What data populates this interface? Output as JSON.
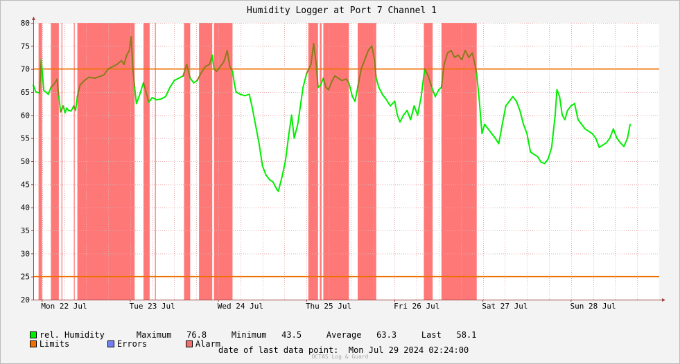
{
  "chart_data": {
    "type": "line",
    "title": "Humidity Logger at Port 7 Channel 1",
    "ylim": [
      20,
      80
    ],
    "yticks": [
      20,
      25,
      30,
      35,
      40,
      45,
      50,
      55,
      60,
      65,
      70,
      75,
      80
    ],
    "xlim": [
      0,
      7.1
    ],
    "xticks": [
      {
        "x": 0.35,
        "label": "Mon 22 Jul"
      },
      {
        "x": 1.35,
        "label": "Tue 23 Jul"
      },
      {
        "x": 2.35,
        "label": "Wed 24 Jul"
      },
      {
        "x": 3.35,
        "label": "Thu 25 Jul"
      },
      {
        "x": 4.35,
        "label": "Fri 26 Jul"
      },
      {
        "x": 5.35,
        "label": "Sat 27 Jul"
      },
      {
        "x": 6.35,
        "label": "Sun 28 Jul"
      }
    ],
    "limits": [
      70,
      25
    ],
    "alarm_periods": [
      [
        0.06,
        0.1
      ],
      [
        0.2,
        0.29
      ],
      [
        0.32,
        0.33
      ],
      [
        0.46,
        0.47
      ],
      [
        0.5,
        1.15
      ],
      [
        1.25,
        1.32
      ],
      [
        1.38,
        1.39
      ],
      [
        1.71,
        1.78
      ],
      [
        1.88,
        2.03
      ],
      [
        2.05,
        2.26
      ],
      [
        3.12,
        3.23
      ],
      [
        3.25,
        3.27
      ],
      [
        3.29,
        3.58
      ],
      [
        3.68,
        3.89
      ],
      [
        4.43,
        4.53
      ],
      [
        4.63,
        5.03
      ]
    ],
    "series": [
      {
        "name": "rel. Humidity",
        "color": "#00ee00",
        "alarm_color": "#8b7b1b",
        "points": [
          [
            0.0,
            66.5
          ],
          [
            0.03,
            65.0
          ],
          [
            0.07,
            64.8
          ],
          [
            0.09,
            72.0
          ],
          [
            0.12,
            65.3
          ],
          [
            0.15,
            64.9
          ],
          [
            0.17,
            64.5
          ],
          [
            0.2,
            66.0
          ],
          [
            0.24,
            66.8
          ],
          [
            0.27,
            67.8
          ],
          [
            0.29,
            64.0
          ],
          [
            0.31,
            60.7
          ],
          [
            0.34,
            62.0
          ],
          [
            0.36,
            60.5
          ],
          [
            0.38,
            61.5
          ],
          [
            0.4,
            61.0
          ],
          [
            0.43,
            60.9
          ],
          [
            0.46,
            62.0
          ],
          [
            0.48,
            61.0
          ],
          [
            0.5,
            64.0
          ],
          [
            0.53,
            66.5
          ],
          [
            0.58,
            67.5
          ],
          [
            0.63,
            68.2
          ],
          [
            0.7,
            68.0
          ],
          [
            0.8,
            68.7
          ],
          [
            0.85,
            70.0
          ],
          [
            0.9,
            70.5
          ],
          [
            0.95,
            71.0
          ],
          [
            1.0,
            71.8
          ],
          [
            1.03,
            71.0
          ],
          [
            1.06,
            73.0
          ],
          [
            1.09,
            74.0
          ],
          [
            1.11,
            77.0
          ],
          [
            1.13,
            70.0
          ],
          [
            1.15,
            66.0
          ],
          [
            1.17,
            62.5
          ],
          [
            1.2,
            64.0
          ],
          [
            1.25,
            67.0
          ],
          [
            1.28,
            65.0
          ],
          [
            1.31,
            62.8
          ],
          [
            1.35,
            63.8
          ],
          [
            1.4,
            63.3
          ],
          [
            1.45,
            63.5
          ],
          [
            1.5,
            64.0
          ],
          [
            1.55,
            66.0
          ],
          [
            1.6,
            67.5
          ],
          [
            1.65,
            68.0
          ],
          [
            1.7,
            68.5
          ],
          [
            1.74,
            71.0
          ],
          [
            1.78,
            68.0
          ],
          [
            1.82,
            67.0
          ],
          [
            1.86,
            67.5
          ],
          [
            1.9,
            69.0
          ],
          [
            1.95,
            70.5
          ],
          [
            2.0,
            71.0
          ],
          [
            2.03,
            73.0
          ],
          [
            2.05,
            70.0
          ],
          [
            2.08,
            69.5
          ],
          [
            2.12,
            70.5
          ],
          [
            2.16,
            71.5
          ],
          [
            2.2,
            74.0
          ],
          [
            2.23,
            70.5
          ],
          [
            2.26,
            69.5
          ],
          [
            2.28,
            67.0
          ],
          [
            2.3,
            65.0
          ],
          [
            2.35,
            64.5
          ],
          [
            2.4,
            64.2
          ],
          [
            2.45,
            64.5
          ],
          [
            2.48,
            62.0
          ],
          [
            2.52,
            58.0
          ],
          [
            2.56,
            54.0
          ],
          [
            2.6,
            49.0
          ],
          [
            2.64,
            47.0
          ],
          [
            2.68,
            46.0
          ],
          [
            2.72,
            45.5
          ],
          [
            2.76,
            44.0
          ],
          [
            2.78,
            43.5
          ],
          [
            2.82,
            46.5
          ],
          [
            2.86,
            50.0
          ],
          [
            2.9,
            56.0
          ],
          [
            2.93,
            60.0
          ],
          [
            2.96,
            55.0
          ],
          [
            3.0,
            58.0
          ],
          [
            3.03,
            62.0
          ],
          [
            3.06,
            66.0
          ],
          [
            3.1,
            69.0
          ],
          [
            3.15,
            71.0
          ],
          [
            3.18,
            75.5
          ],
          [
            3.21,
            71.0
          ],
          [
            3.23,
            66.0
          ],
          [
            3.26,
            66.5
          ],
          [
            3.29,
            68.0
          ],
          [
            3.32,
            66.0
          ],
          [
            3.35,
            65.5
          ],
          [
            3.38,
            67.0
          ],
          [
            3.42,
            68.5
          ],
          [
            3.46,
            68.0
          ],
          [
            3.5,
            67.5
          ],
          [
            3.55,
            67.8
          ],
          [
            3.58,
            67.0
          ],
          [
            3.62,
            64.0
          ],
          [
            3.65,
            63.0
          ],
          [
            3.68,
            66.0
          ],
          [
            3.72,
            70.0
          ],
          [
            3.76,
            72.0
          ],
          [
            3.8,
            74.0
          ],
          [
            3.84,
            75.0
          ],
          [
            3.87,
            72.0
          ],
          [
            3.89,
            68.0
          ],
          [
            3.92,
            66.0
          ],
          [
            3.96,
            64.5
          ],
          [
            4.0,
            63.5
          ],
          [
            4.05,
            62.0
          ],
          [
            4.1,
            63.0
          ],
          [
            4.13,
            60.0
          ],
          [
            4.16,
            58.5
          ],
          [
            4.2,
            60.0
          ],
          [
            4.24,
            61.0
          ],
          [
            4.28,
            59.0
          ],
          [
            4.32,
            62.0
          ],
          [
            4.36,
            60.0
          ],
          [
            4.4,
            64.0
          ],
          [
            4.44,
            70.0
          ],
          [
            4.48,
            68.5
          ],
          [
            4.52,
            66.0
          ],
          [
            4.56,
            64.0
          ],
          [
            4.6,
            65.5
          ],
          [
            4.63,
            66.0
          ],
          [
            4.66,
            71.0
          ],
          [
            4.7,
            73.5
          ],
          [
            4.74,
            74.0
          ],
          [
            4.78,
            72.5
          ],
          [
            4.82,
            73.0
          ],
          [
            4.86,
            72.0
          ],
          [
            4.9,
            74.0
          ],
          [
            4.94,
            72.5
          ],
          [
            4.98,
            73.5
          ],
          [
            5.01,
            71.0
          ],
          [
            5.03,
            69.0
          ],
          [
            5.06,
            63.0
          ],
          [
            5.09,
            56.0
          ],
          [
            5.12,
            58.0
          ],
          [
            5.16,
            57.0
          ],
          [
            5.2,
            56.0
          ],
          [
            5.24,
            55.0
          ],
          [
            5.28,
            53.8
          ],
          [
            5.32,
            58.0
          ],
          [
            5.36,
            62.0
          ],
          [
            5.4,
            63.0
          ],
          [
            5.44,
            64.0
          ],
          [
            5.48,
            63.0
          ],
          [
            5.52,
            61.0
          ],
          [
            5.56,
            58.0
          ],
          [
            5.6,
            56.0
          ],
          [
            5.64,
            52.0
          ],
          [
            5.68,
            51.5
          ],
          [
            5.72,
            51.0
          ],
          [
            5.76,
            49.8
          ],
          [
            5.8,
            49.5
          ],
          [
            5.84,
            50.5
          ],
          [
            5.88,
            53.0
          ],
          [
            5.92,
            60.0
          ],
          [
            5.94,
            65.5
          ],
          [
            5.97,
            64.0
          ],
          [
            6.0,
            60.0
          ],
          [
            6.03,
            59.0
          ],
          [
            6.06,
            61.0
          ],
          [
            6.1,
            62.0
          ],
          [
            6.14,
            62.5
          ],
          [
            6.18,
            59.0
          ],
          [
            6.22,
            58.0
          ],
          [
            6.26,
            57.0
          ],
          [
            6.3,
            56.5
          ],
          [
            6.34,
            56.0
          ],
          [
            6.38,
            55.0
          ],
          [
            6.42,
            53.0
          ],
          [
            6.46,
            53.5
          ],
          [
            6.5,
            54.0
          ],
          [
            6.54,
            55.0
          ],
          [
            6.58,
            57.0
          ],
          [
            6.62,
            55.0
          ],
          [
            6.66,
            54.0
          ],
          [
            6.7,
            53.2
          ],
          [
            6.74,
            55.0
          ],
          [
            6.77,
            58.0
          ]
        ]
      }
    ],
    "legend": [
      {
        "label": "rel. Humidity",
        "color": "#00ee00"
      },
      {
        "label": "Limits",
        "color": "#ee7000"
      },
      {
        "label": "Errors",
        "color": "#7080ee"
      },
      {
        "label": "Alarm",
        "color": "#ee7070"
      }
    ],
    "stats": {
      "max_label": "Maximum",
      "max": "76.8",
      "min_label": "Minimum",
      "min": "43.5",
      "avg_label": "Average",
      "avg": "63.3",
      "last_label": "Last",
      "last": "58.1"
    },
    "footer": "date of last data point:  Mon Jul 29 2024 02:24:00",
    "credit": "OCTAS Log & Guard"
  }
}
